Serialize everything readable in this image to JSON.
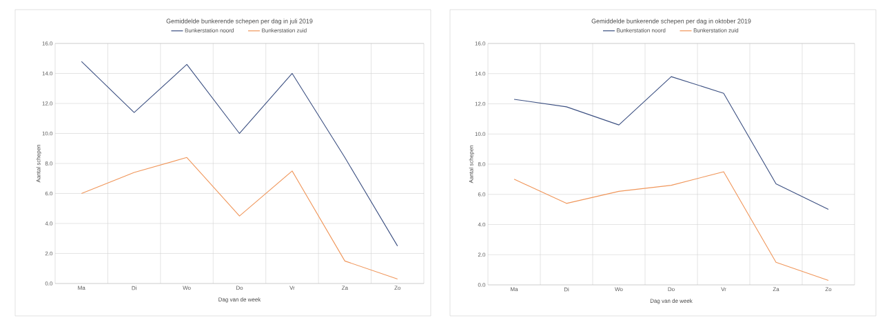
{
  "chart_data": [
    {
      "type": "line",
      "title": "Gemiddelde bunkerende schepen per dag in juli 2019",
      "xlabel": "Dag van de week",
      "ylabel": "Aantal schepen",
      "categories": [
        "Ma",
        "Di",
        "Wo",
        "Do",
        "Vr",
        "Za",
        "Zo"
      ],
      "series": [
        {
          "name": "Bunkerstation noord",
          "color": "#3b4f81",
          "values": [
            14.8,
            11.4,
            14.6,
            10.0,
            14.0,
            8.4,
            2.5
          ]
        },
        {
          "name": "Bunkerstation zuid",
          "color": "#f0965a",
          "values": [
            6.0,
            7.4,
            8.4,
            4.5,
            7.5,
            1.5,
            0.3
          ]
        }
      ],
      "ylim": [
        0,
        16
      ],
      "yticks": [
        {
          "value": 0,
          "label": "0.0"
        },
        {
          "value": 2,
          "label": "2.0"
        },
        {
          "value": 4,
          "label": "4.0"
        },
        {
          "value": 6,
          "label": "6.0"
        },
        {
          "value": 8,
          "label": "8.0"
        },
        {
          "value": 10,
          "label": "10.0"
        },
        {
          "value": 12,
          "label": "12.0"
        },
        {
          "value": 14,
          "label": "14.0"
        },
        {
          "value": 16,
          "label": "16.0"
        }
      ],
      "grid": true,
      "legend": "top",
      "marker": "none",
      "line_style": "solid"
    },
    {
      "type": "line",
      "title": "Gemiddelde bunkerende schepen per dag in oktober 2019",
      "xlabel": "Dag van de week",
      "ylabel": "Aantal schepen",
      "categories": [
        "Ma",
        "Di",
        "Wo",
        "Do",
        "Vr",
        "Za",
        "Zo"
      ],
      "series": [
        {
          "name": "Bunkerstation noord",
          "color": "#3b4f81",
          "values": [
            12.3,
            11.8,
            10.6,
            13.8,
            12.7,
            6.7,
            5.0
          ]
        },
        {
          "name": "Bunkerstation zuid",
          "color": "#f0965a",
          "values": [
            7.0,
            5.4,
            6.2,
            6.6,
            7.5,
            1.5,
            0.3
          ]
        }
      ],
      "ylim": [
        0,
        16
      ],
      "yticks": [
        {
          "value": 0,
          "label": "0.0"
        },
        {
          "value": 2,
          "label": "2.0"
        },
        {
          "value": 4,
          "label": "4.0"
        },
        {
          "value": 6,
          "label": "6.0"
        },
        {
          "value": 8,
          "label": "8.0"
        },
        {
          "value": 10,
          "label": "10.0"
        },
        {
          "value": 12,
          "label": "12.0"
        },
        {
          "value": 14,
          "label": "14.0"
        },
        {
          "value": 16,
          "label": "16.0"
        }
      ],
      "grid": true,
      "legend": "top",
      "marker": "none",
      "line_style": "solid"
    }
  ]
}
